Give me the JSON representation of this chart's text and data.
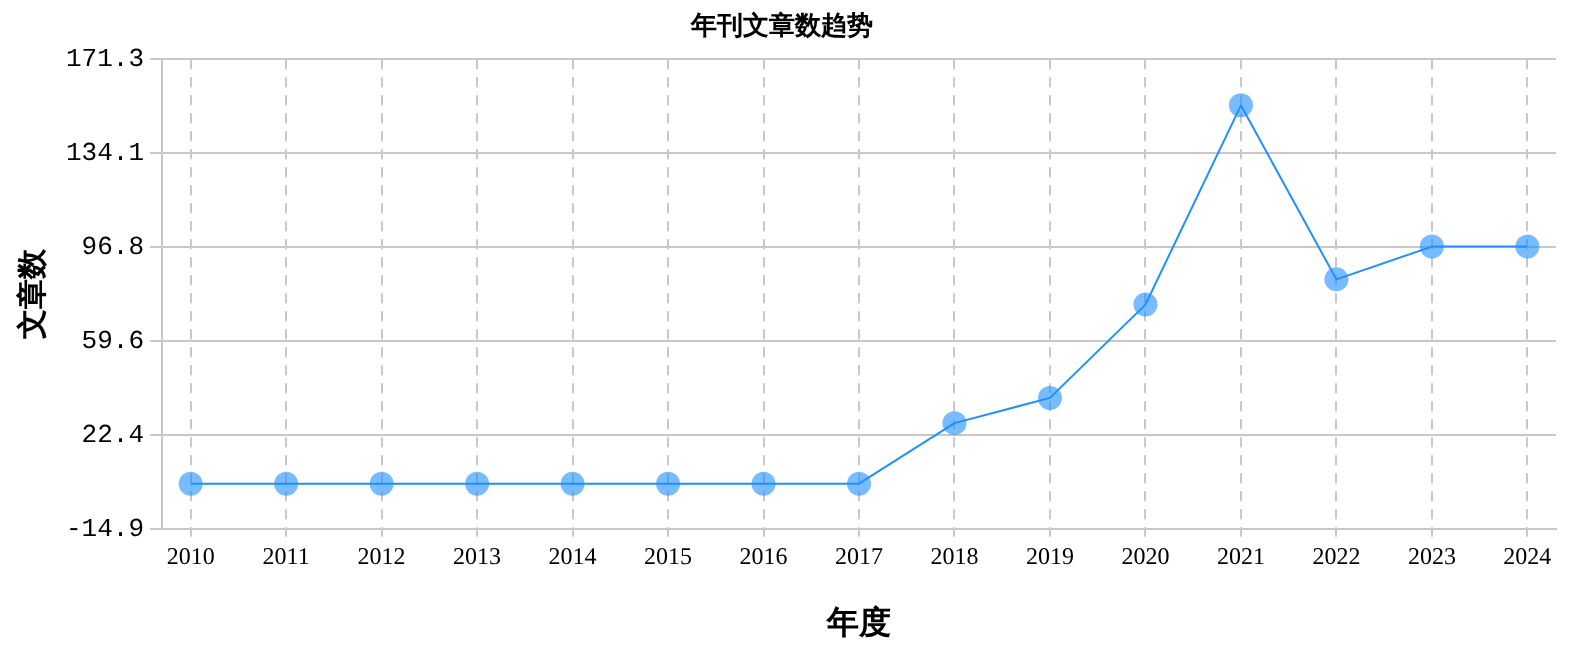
{
  "chart_data": {
    "type": "line",
    "title": "年刊文章数趋势",
    "xlabel": "年度",
    "ylabel": "文章数",
    "x": [
      2010,
      2011,
      2012,
      2013,
      2014,
      2015,
      2016,
      2017,
      2018,
      2019,
      2020,
      2021,
      2022,
      2023,
      2024
    ],
    "series": [
      {
        "color": "#1e90ff",
        "values": [
          3,
          3,
          3,
          3,
          3,
          3,
          3,
          3,
          27,
          37,
          74,
          153,
          84,
          97,
          97
        ]
      }
    ],
    "xlim": [
      2009.7,
      2024.3
    ],
    "xticks": [
      2010,
      2011,
      2012,
      2013,
      2014,
      2015,
      2016,
      2017,
      2018,
      2019,
      2020,
      2021,
      2022,
      2023,
      2024
    ],
    "ylim": [
      -14.9,
      171.3
    ],
    "yticks": [
      -14.9,
      22.4,
      59.6,
      96.8,
      134.1,
      171.3
    ],
    "grid": true,
    "legend": false,
    "marker": "circle",
    "line_style": "solid"
  }
}
